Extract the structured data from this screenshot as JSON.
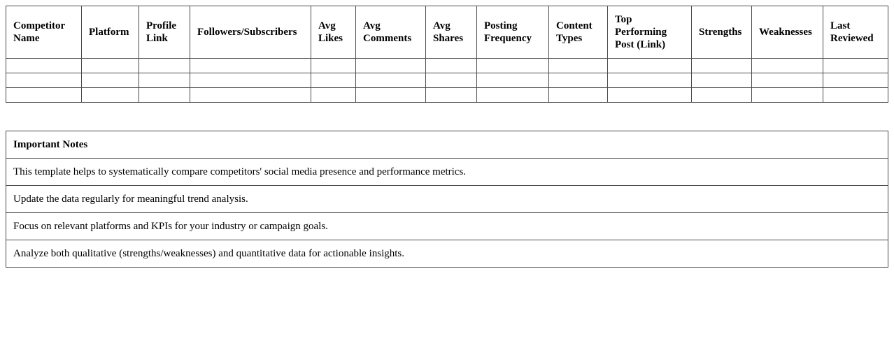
{
  "competitor_table": {
    "headers": [
      "Competitor Name",
      "Platform",
      "Profile Link",
      "Followers/Subscribers",
      "Avg Likes",
      "Avg Comments",
      "Avg Shares",
      "Posting Frequency",
      "Content Types",
      "Top Performing Post (Link)",
      "Strengths",
      "Weaknesses",
      "Last Reviewed"
    ],
    "rows": [
      [
        "",
        "",
        "",
        "",
        "",
        "",
        "",
        "",
        "",
        "",
        "",
        "",
        ""
      ],
      [
        "",
        "",
        "",
        "",
        "",
        "",
        "",
        "",
        "",
        "",
        "",
        "",
        ""
      ],
      [
        "",
        "",
        "",
        "",
        "",
        "",
        "",
        "",
        "",
        "",
        "",
        "",
        ""
      ]
    ]
  },
  "notes": {
    "title": "Important Notes",
    "items": [
      "This template helps to systematically compare competitors' social media presence and performance metrics.",
      "Update the data regularly for meaningful trend analysis.",
      "Focus on relevant platforms and KPIs for your industry or campaign goals.",
      "Analyze both qualitative (strengths/weaknesses) and quantitative data for actionable insights."
    ]
  }
}
